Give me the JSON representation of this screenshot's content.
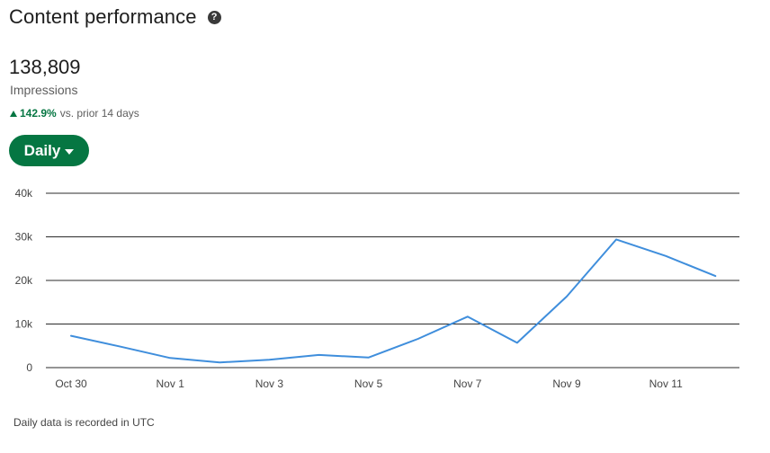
{
  "header": {
    "title": "Content performance",
    "help_icon": "question-circle-icon"
  },
  "metric": {
    "value": "138,809",
    "label": "Impressions",
    "change_pct": "142.9%",
    "change_text": "vs. prior 14 days",
    "change_icon": "triangle-up-icon",
    "change_color": "#057642"
  },
  "granularity": {
    "selected": "Daily",
    "icon": "caret-down-icon",
    "color": "#057642"
  },
  "chart_data": {
    "type": "line",
    "x": [
      "Oct 30",
      "Oct 31",
      "Nov 1",
      "Nov 2",
      "Nov 3",
      "Nov 4",
      "Nov 5",
      "Nov 6",
      "Nov 7",
      "Nov 8",
      "Nov 9",
      "Nov 10",
      "Nov 11",
      "Nov 12"
    ],
    "x_tick_labels": [
      "Oct 30",
      "Nov 1",
      "Nov 3",
      "Nov 5",
      "Nov 7",
      "Nov 9",
      "Nov 11"
    ],
    "y_tick_labels": [
      "0",
      "10k",
      "20k",
      "30k",
      "40k"
    ],
    "series": [
      {
        "values": [
          7300,
          4800,
          2200,
          1200,
          1800,
          2900,
          2300,
          6600,
          11700,
          5700,
          16300,
          29400,
          25600,
          21000
        ],
        "color": "#3f8edc"
      }
    ],
    "ylim": [
      0,
      40000
    ],
    "grid": true,
    "title": "",
    "xlabel": "",
    "ylabel": ""
  },
  "footnote": "Daily data is recorded in UTC"
}
